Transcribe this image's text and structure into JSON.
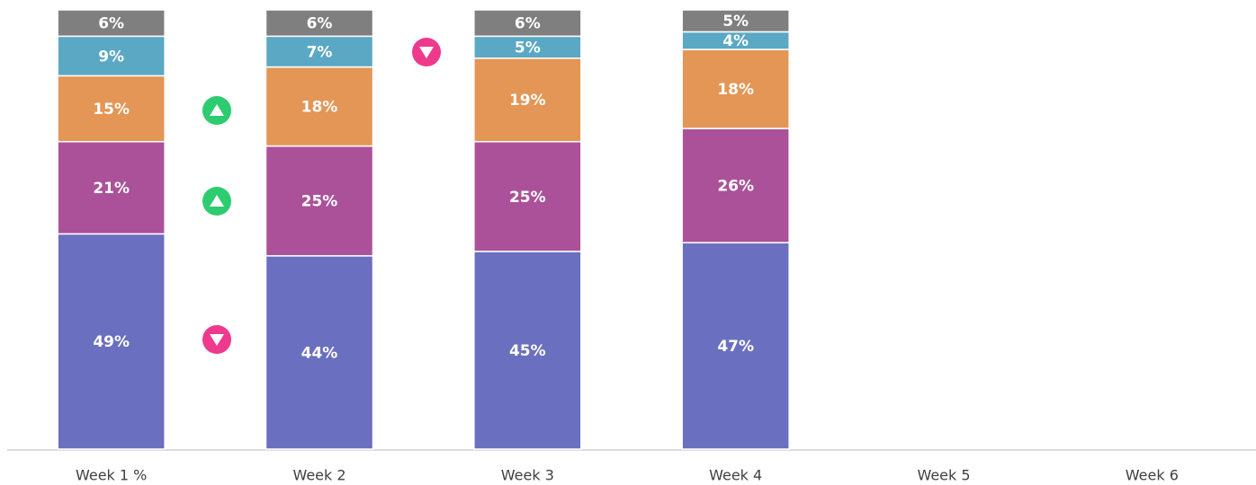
{
  "chart_data": {
    "type": "stacked-bar",
    "categories": [
      "Week 1 %",
      "Week 2",
      "Week 3",
      "Week 4",
      "Week 5",
      "Week 6"
    ],
    "series": [
      {
        "color": "#6b6fbf",
        "values": [
          49,
          44,
          45,
          47,
          null,
          null
        ],
        "value_labels": [
          "49%",
          "44%",
          "45%",
          "47%",
          null,
          null
        ]
      },
      {
        "color": "#ab519a",
        "values": [
          21,
          25,
          25,
          26,
          null,
          null
        ],
        "value_labels": [
          "21%",
          "25%",
          "25%",
          "26%",
          null,
          null
        ]
      },
      {
        "color": "#e39655",
        "values": [
          15,
          18,
          19,
          18,
          null,
          null
        ],
        "value_labels": [
          "15%",
          "18%",
          "19%",
          "18%",
          null,
          null
        ]
      },
      {
        "color": "#5aa8c4",
        "values": [
          9,
          7,
          5,
          4,
          null,
          null
        ],
        "value_labels": [
          "9%",
          "7%",
          "5%",
          "4%",
          null,
          null
        ]
      },
      {
        "color": "#7f7f7f",
        "values": [
          6,
          6,
          6,
          5,
          null,
          null
        ],
        "value_labels": [
          "6%",
          "6%",
          "6%",
          "5%",
          null,
          null
        ]
      }
    ]
  }
}
